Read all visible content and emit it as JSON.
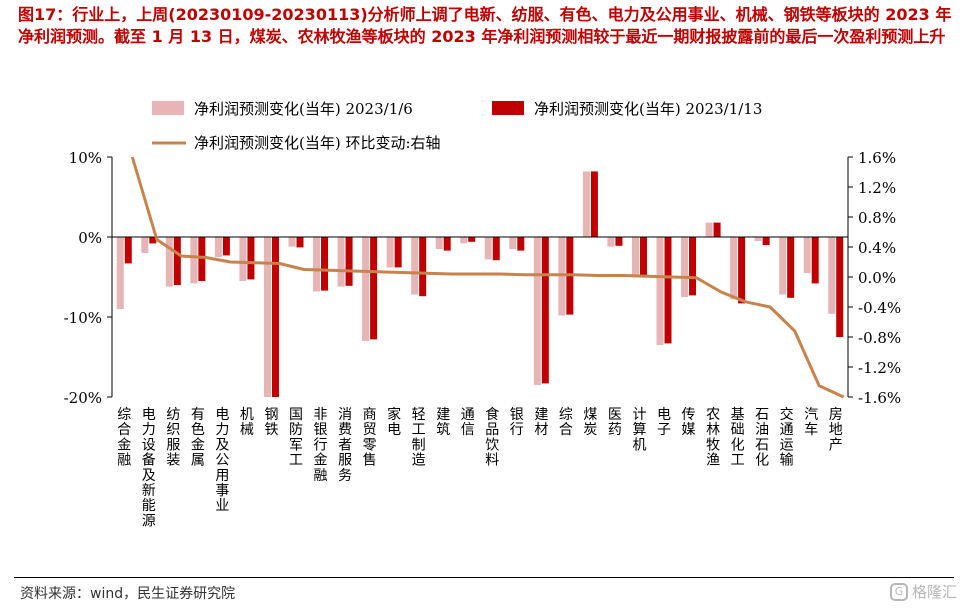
{
  "title": "图17：行业上，上周(20230109-20230113)分析师上调了电新、纺服、有色、电力及公用事业、机械、钢铁等板块的 2023 年净利润预测。截至 1 月 13 日，煤炭、农林牧渔等板块的 2023 年净利润预测相较于最近一期财报披露前的最后一次盈利预测上升",
  "source": "资料来源：wind，民生证券研究院",
  "watermark": "格隆汇",
  "colors": {
    "title": "#c00000",
    "series_prev": "#e8b5b6",
    "series_curr": "#c00000",
    "series_line": "#c8834d"
  },
  "chart_data": {
    "type": "bar",
    "categories": [
      "综合金融",
      "电力设备及新能源",
      "纺织服装",
      "有色金属",
      "电力及公用事业",
      "机械",
      "钢铁",
      "国防军工",
      "非银行金融",
      "消费者服务",
      "商贸零售",
      "家电",
      "轻工制造",
      "建筑",
      "通信",
      "食品饮料",
      "银行",
      "建材",
      "综合",
      "煤炭",
      "医药",
      "计算机",
      "电子",
      "传媒",
      "农林牧渔",
      "基础化工",
      "石油石化",
      "交通运输",
      "汽车",
      "房地产"
    ],
    "series": [
      {
        "name": "净利润预测变化(当年) 2023/1/6",
        "axis": "left",
        "values": [
          -9.0,
          -2.0,
          -6.2,
          -5.8,
          -2.5,
          -5.5,
          -20.0,
          -1.2,
          -6.8,
          -6.2,
          -13.0,
          -3.8,
          -7.2,
          -1.5,
          -0.8,
          -2.8,
          -1.5,
          -18.5,
          -9.8,
          8.2,
          -1.2,
          -5.0,
          -13.5,
          -7.5,
          1.8,
          -7.8,
          -0.5,
          -7.2,
          -4.5,
          -9.6
        ]
      },
      {
        "name": "净利润预测变化(当年) 2023/1/13",
        "axis": "left",
        "values": [
          -3.3,
          -0.8,
          -6.0,
          -5.5,
          -2.3,
          -5.3,
          -20.0,
          -1.3,
          -6.7,
          -6.1,
          -12.8,
          -3.8,
          -7.4,
          -1.7,
          -0.6,
          -2.9,
          -1.7,
          -18.3,
          -9.7,
          8.2,
          -1.1,
          -5.0,
          -13.3,
          -7.3,
          1.8,
          -8.3,
          -1.0,
          -7.6,
          -5.8,
          -12.5
        ]
      },
      {
        "name": "净利润预测变化(当年) 环比变动:右轴",
        "axis": "right",
        "type": "line",
        "values": [
          1.6,
          0.5,
          0.28,
          0.26,
          0.2,
          0.19,
          0.18,
          0.1,
          0.09,
          0.08,
          0.07,
          0.06,
          0.05,
          0.04,
          0.04,
          0.04,
          0.03,
          0.03,
          0.03,
          0.02,
          0.02,
          0.01,
          0.0,
          -0.01,
          -0.2,
          -0.33,
          -0.4,
          -0.72,
          -1.45,
          -1.6
        ]
      }
    ],
    "left_axis": {
      "ticks": [
        "10%",
        "0%",
        "-10%",
        "-20%"
      ],
      "ylim": [
        -20,
        10
      ]
    },
    "right_axis": {
      "ticks": [
        "1.6%",
        "1.2%",
        "0.8%",
        "0.4%",
        "0.0%",
        "-0.4%",
        "-0.8%",
        "-1.2%",
        "-1.6%"
      ],
      "ylim": [
        -1.6,
        1.6
      ]
    },
    "legend": "top"
  }
}
